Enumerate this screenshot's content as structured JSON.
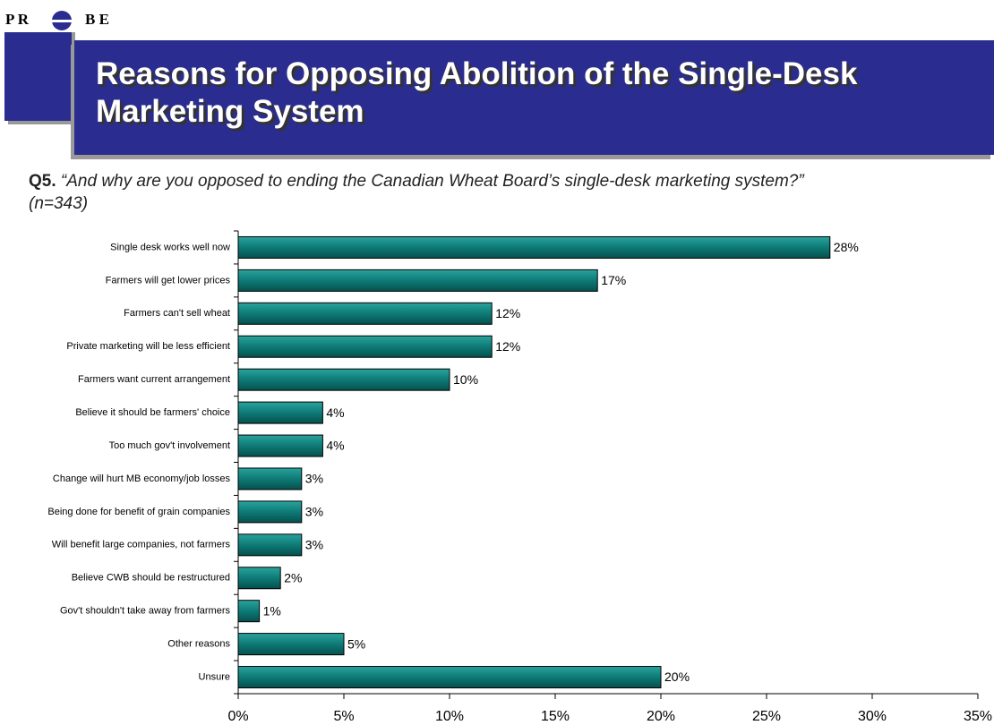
{
  "logo": {
    "left": "P R",
    "right": "B E"
  },
  "chart_data": {
    "type": "hbar",
    "title": "Reasons for Opposing Abolition of the Single-Desk Marketing System",
    "question_label": "Q5.",
    "question": "“And why are you opposed to ending the Canadian Wheat Board’s single-desk marketing system?”",
    "sample": "(n=343)",
    "categories": [
      "Single desk works well now",
      "Farmers will get lower prices",
      "Farmers can't sell wheat",
      "Private marketing will be less efficient",
      "Farmers want current arrangement",
      "Believe it should be farmers' choice",
      "Too much gov't involvement",
      "Change will hurt MB economy/job losses",
      "Being done for benefit of grain companies",
      "Will benefit large companies, not farmers",
      "Believe CWB should be restructured",
      "Gov't shouldn't take away from farmers",
      "Other reasons",
      "Unsure"
    ],
    "values": [
      28,
      17,
      12,
      12,
      10,
      4,
      4,
      3,
      3,
      3,
      2,
      1,
      5,
      20
    ],
    "value_labels": [
      "28%",
      "17%",
      "12%",
      "12%",
      "10%",
      "4%",
      "4%",
      "3%",
      "3%",
      "3%",
      "2%",
      "1%",
      "5%",
      "20%"
    ],
    "color": "#0e7a76",
    "xlim": [
      0,
      35
    ],
    "xticks": [
      {
        "value": 0,
        "label": "0%"
      },
      {
        "value": 5,
        "label": "5%"
      },
      {
        "value": 10,
        "label": "10%"
      },
      {
        "value": 15,
        "label": "15%"
      },
      {
        "value": 20,
        "label": "20%"
      },
      {
        "value": 25,
        "label": "25%"
      },
      {
        "value": 30,
        "label": "30%"
      },
      {
        "value": 35,
        "label": "35%"
      }
    ]
  }
}
